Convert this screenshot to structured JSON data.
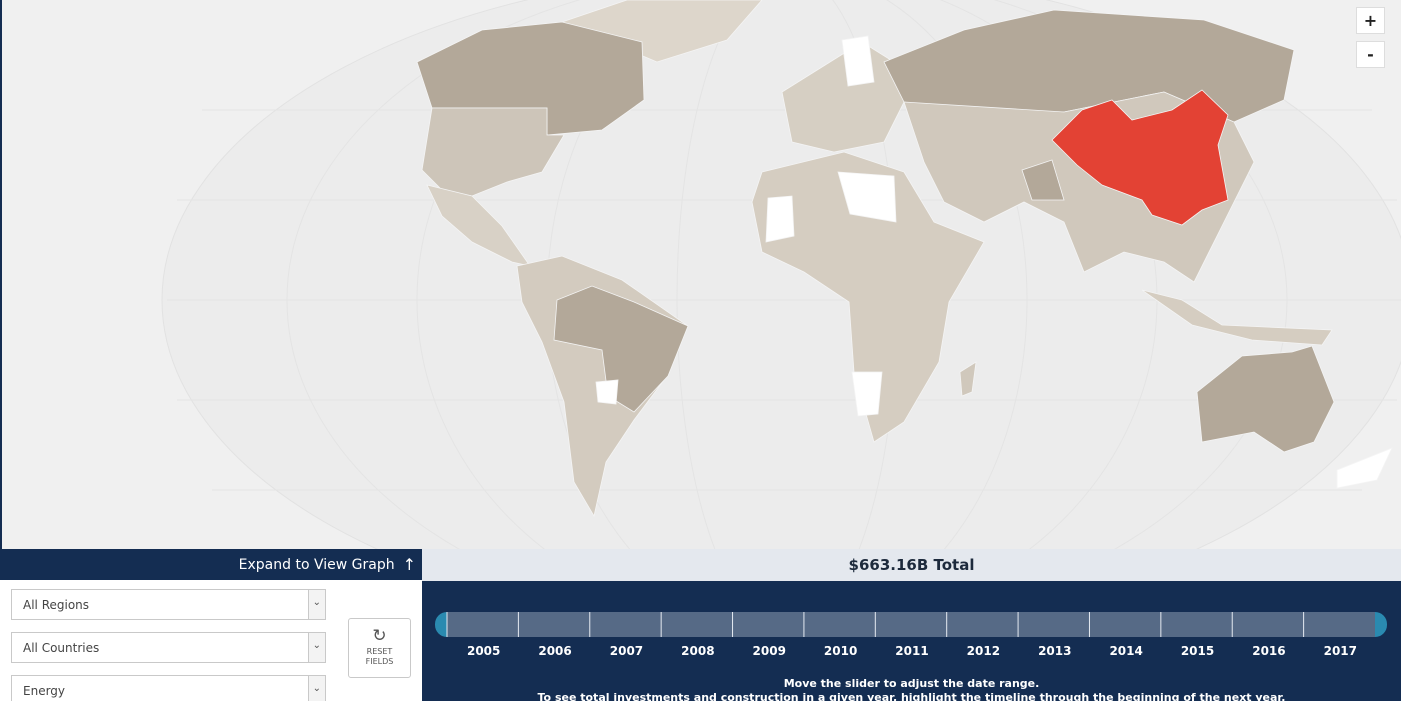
{
  "map_controls": {
    "zoom_in": "+",
    "zoom_out": "-"
  },
  "panel": {
    "expand_label": "Expand to View Graph",
    "filters": [
      "All Regions",
      "All Countries",
      "Energy"
    ],
    "reset_label": "RESET FIELDS"
  },
  "timeline": {
    "total": "$663.16B Total",
    "years": [
      2005,
      2006,
      2007,
      2008,
      2009,
      2010,
      2011,
      2012,
      2013,
      2014,
      2015,
      2016,
      2017
    ],
    "instructions": [
      "Move the slider to adjust the date range.",
      "To see total investments and construction in a given year, highlight the timeline through the beginning of the next year."
    ]
  }
}
